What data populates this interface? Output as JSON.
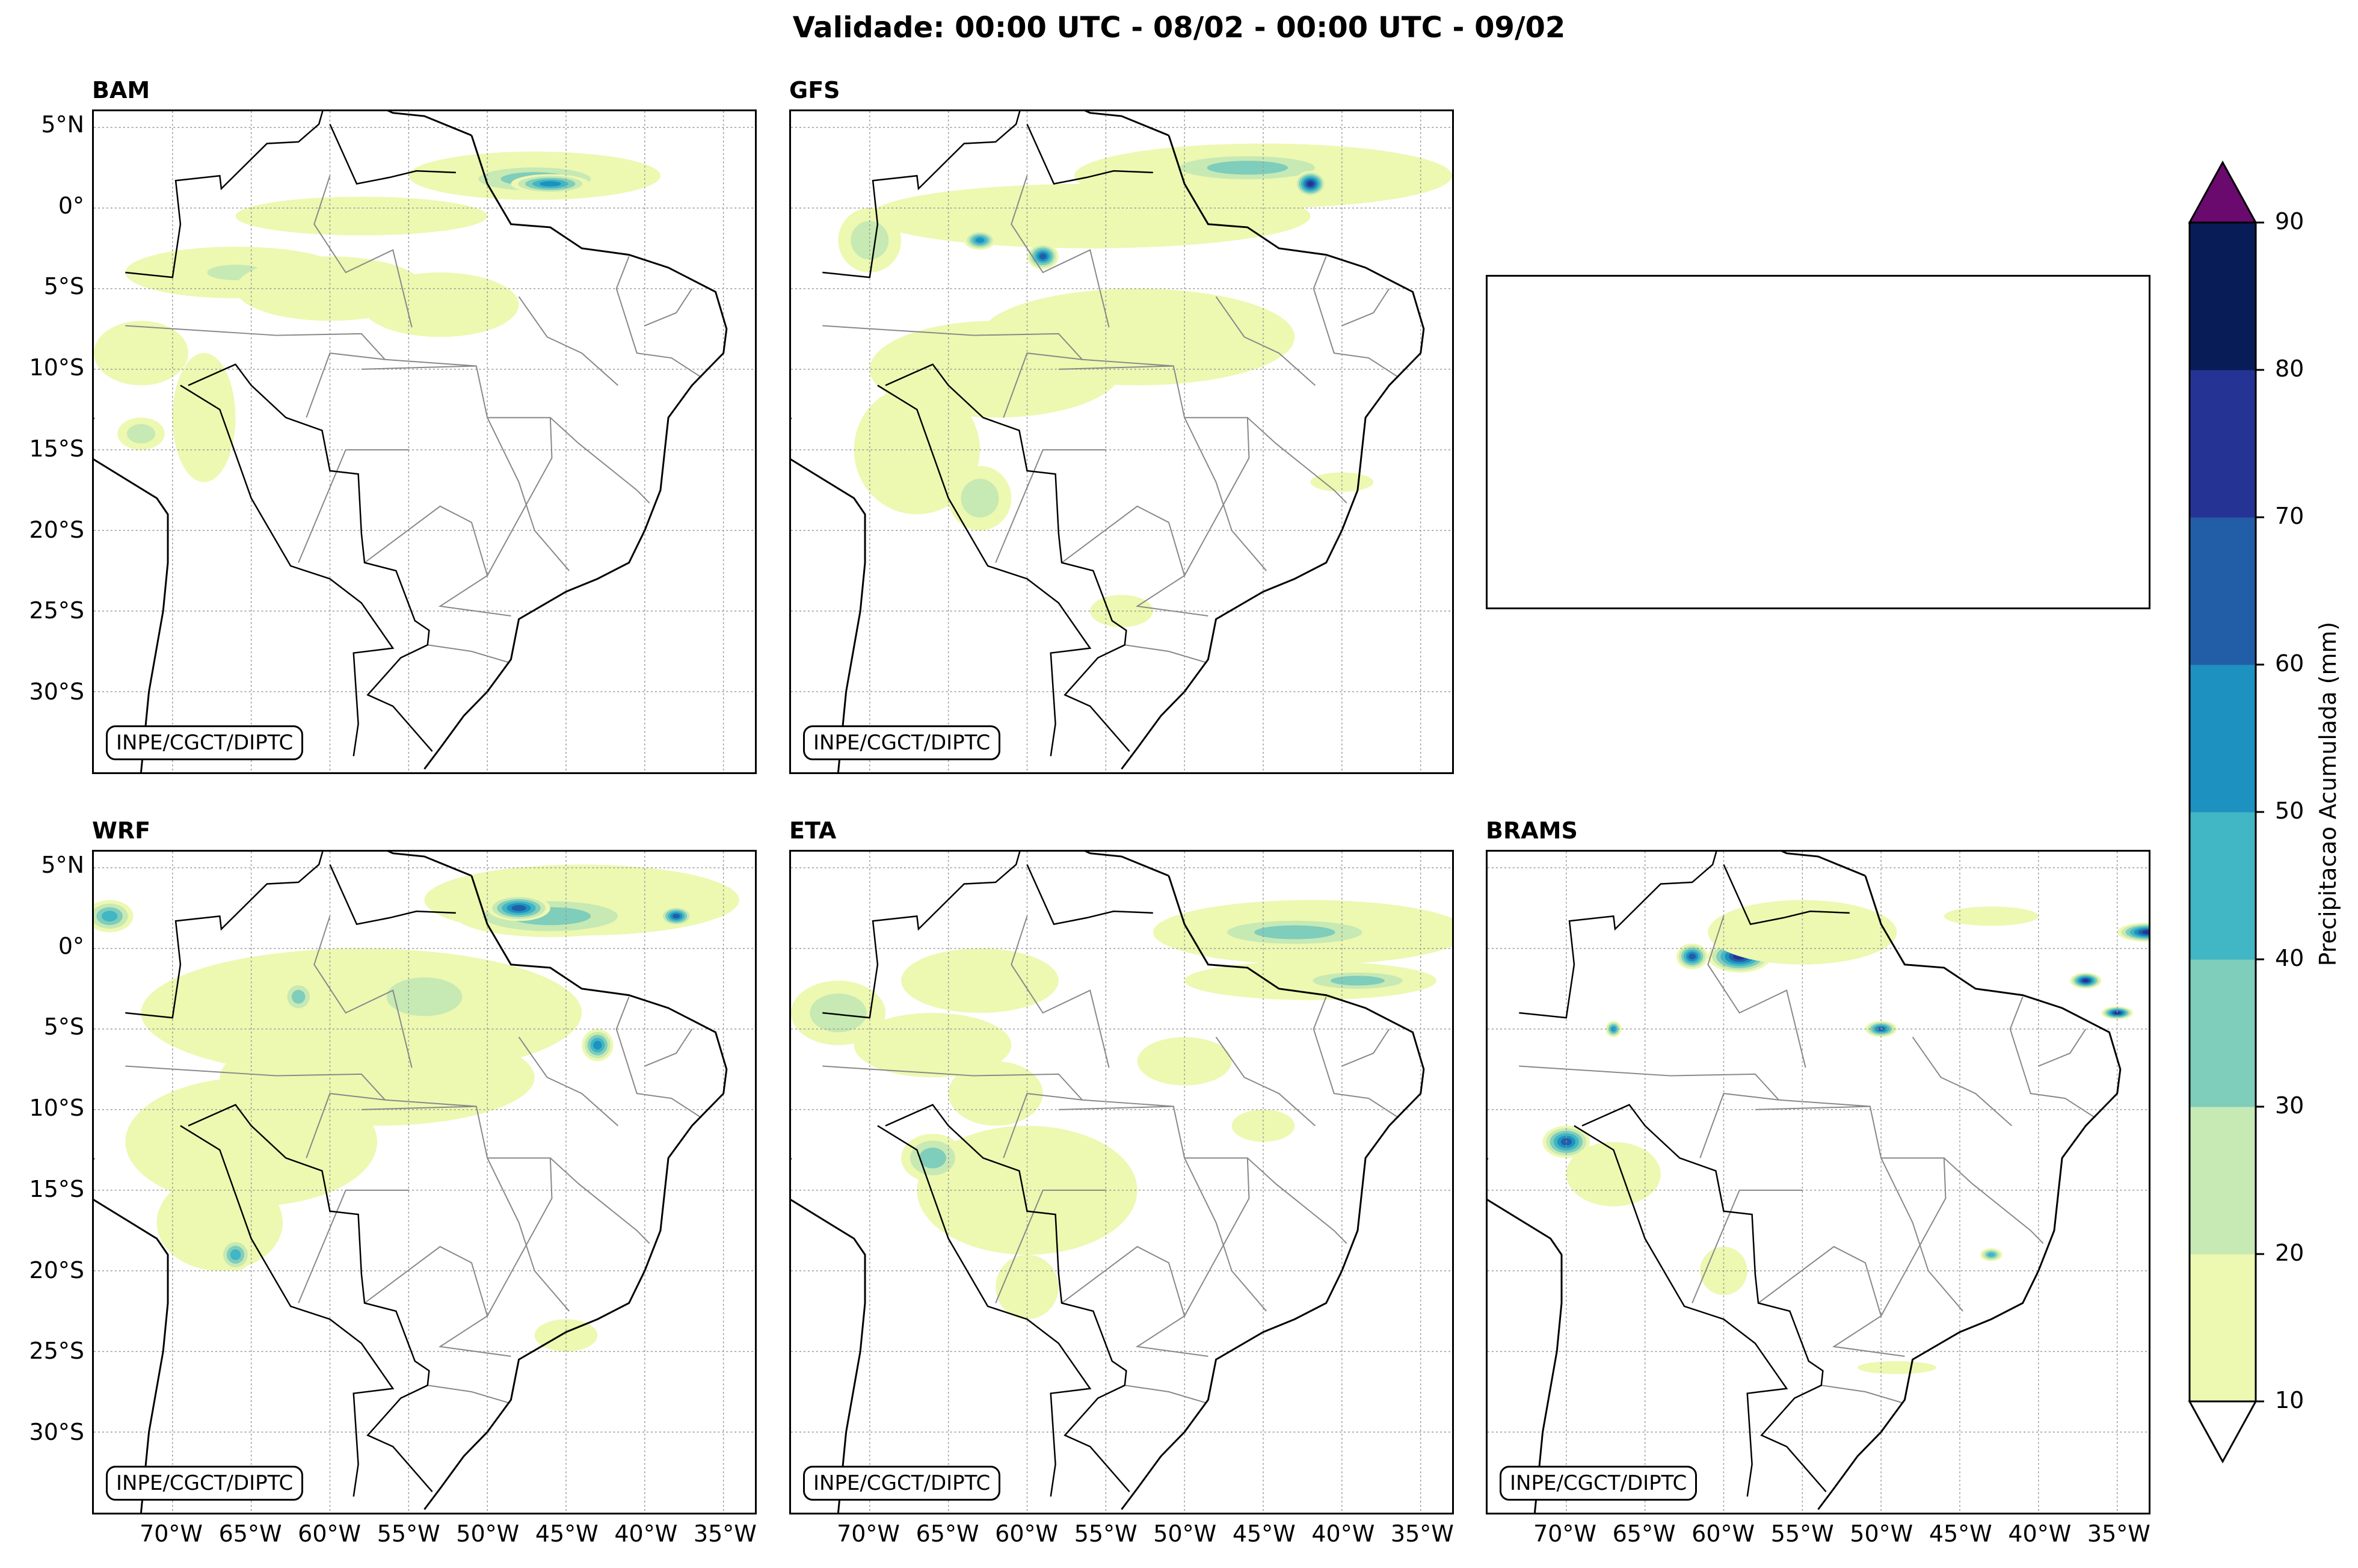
{
  "title": "Validade: 00:00 UTC - 08/02 - 00:00 UTC - 09/02",
  "panels": [
    {
      "name": "BAM",
      "credit": "INPE/CGCT/DIPTC"
    },
    {
      "name": "GFS",
      "credit": "INPE/CGCT/DIPTC"
    },
    {
      "name": "WRF",
      "credit": "INPE/CGCT/DIPTC"
    },
    {
      "name": "ETA",
      "credit": "INPE/CGCT/DIPTC"
    },
    {
      "name": "BRAMS",
      "credit": "INPE/CGCT/DIPTC"
    }
  ],
  "lat_ticks": [
    "5°N",
    "0°",
    "5°S",
    "10°S",
    "15°S",
    "20°S",
    "25°S",
    "30°S"
  ],
  "lon_ticks": [
    "70°W",
    "65°W",
    "60°W",
    "55°W",
    "50°W",
    "45°W",
    "40°W",
    "35°W"
  ],
  "colorbar": {
    "label": "Precipitacao Acumulada (mm)",
    "ticks": [
      "10",
      "20",
      "30",
      "40",
      "50",
      "60",
      "70",
      "80",
      "90"
    ],
    "colors": [
      "#edf8b1",
      "#c7e9b4",
      "#7fcdbb",
      "#41b6c4",
      "#1d91c0",
      "#225ea8",
      "#253494",
      "#081d58"
    ],
    "over_color": "#6a0a6e",
    "under_color": "#ffffff"
  }
}
